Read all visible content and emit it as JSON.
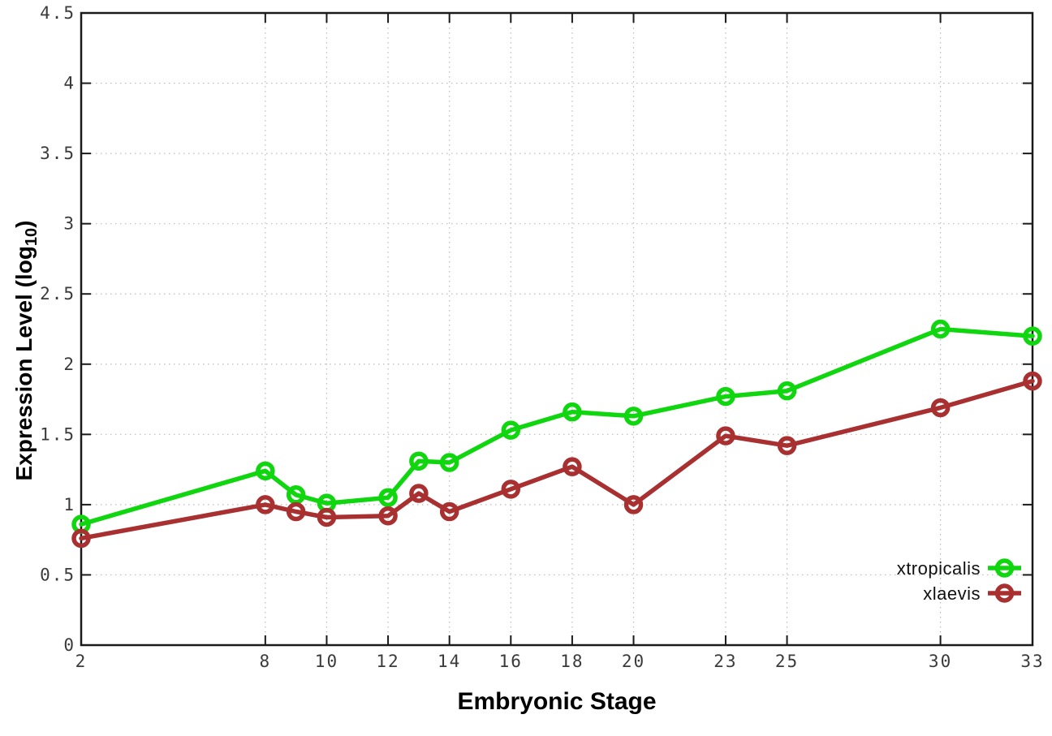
{
  "chart_data": {
    "type": "line",
    "title": "",
    "xlabel": "Embryonic Stage",
    "ylabel": "Expression Level (log10)",
    "ylabel_parts": {
      "main": "Expression Level (log",
      "sub": "10",
      "close": ")"
    },
    "x": [
      2,
      8,
      9,
      10,
      12,
      13,
      14,
      16,
      18,
      20,
      23,
      25,
      30,
      33
    ],
    "series": [
      {
        "name": "xtropicalis",
        "color": "#0fd60f",
        "values": [
          0.86,
          1.24,
          1.07,
          1.01,
          1.05,
          1.31,
          1.3,
          1.53,
          1.66,
          1.63,
          1.77,
          1.81,
          2.25,
          2.2
        ]
      },
      {
        "name": "xlaevis",
        "color": "#a93030",
        "values": [
          0.76,
          1.0,
          0.95,
          0.91,
          0.92,
          1.08,
          0.95,
          1.11,
          1.27,
          1.0,
          1.49,
          1.42,
          1.69,
          1.88
        ]
      }
    ],
    "x_tick_labels": [
      "2",
      "8",
      "10",
      "12",
      "14",
      "16",
      "18",
      "20",
      "23",
      "25",
      "30",
      "33"
    ],
    "x_tick_values": [
      2,
      8,
      10,
      12,
      14,
      16,
      18,
      20,
      23,
      25,
      30,
      33
    ],
    "y_tick_labels": [
      "0",
      "0.5",
      "1",
      "1.5",
      "2",
      "2.5",
      "3",
      "3.5",
      "4",
      "4.5"
    ],
    "y_tick_values": [
      0,
      0.5,
      1,
      1.5,
      2,
      2.5,
      3,
      3.5,
      4,
      4.5
    ],
    "xlim": [
      2,
      33
    ],
    "ylim": [
      0,
      4.5
    ],
    "grid": true,
    "legend_position": "inside-right-lower",
    "marker": "open-circle",
    "colors": {
      "grid": "#bbbbbb",
      "border": "#1a1a1a",
      "tick_text": "#3a3a3a",
      "label_text": "#000000",
      "background": "#ffffff"
    }
  }
}
